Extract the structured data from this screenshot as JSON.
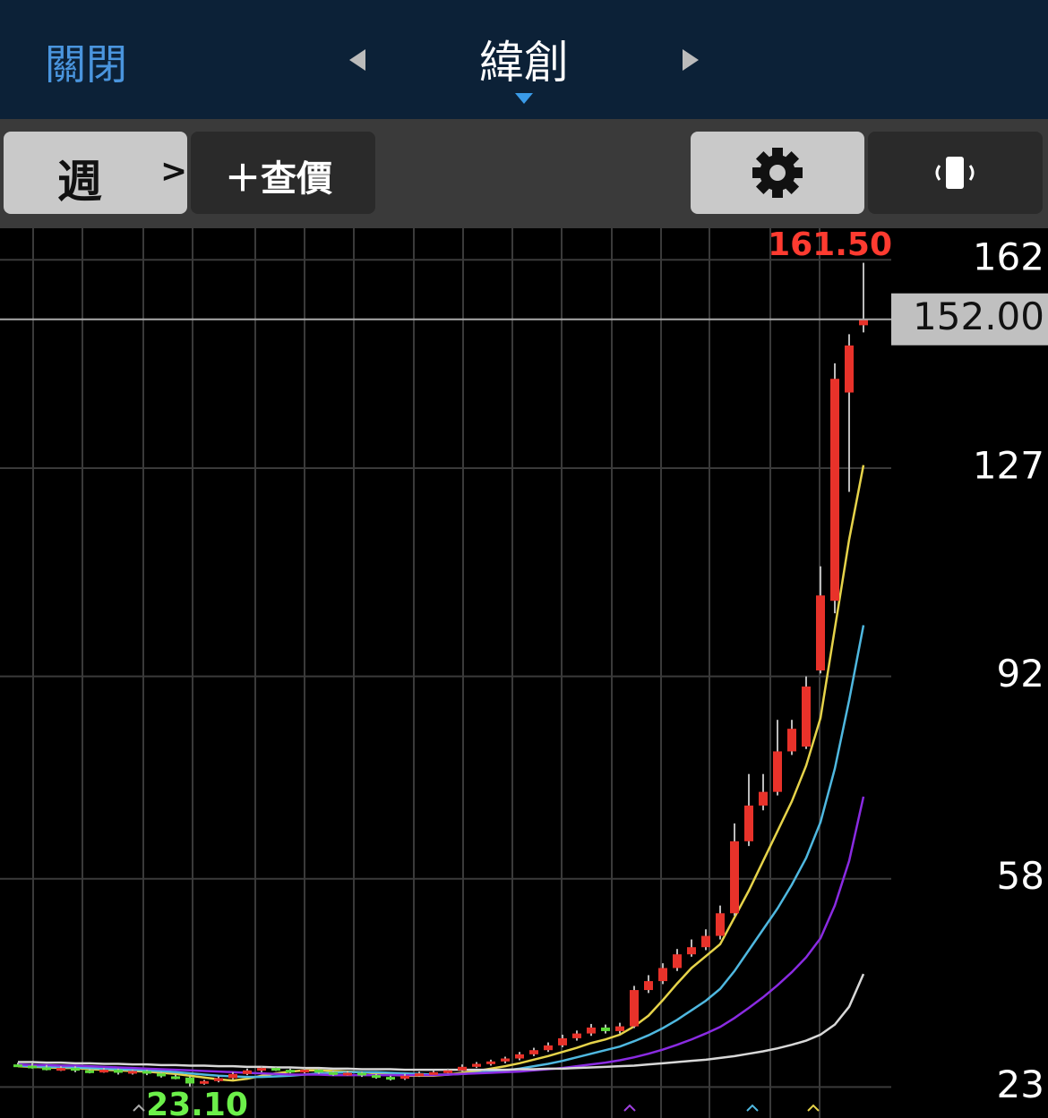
{
  "header": {
    "close": "關閉",
    "title": "緯創"
  },
  "toolbar": {
    "period": "週",
    "period_arrow": ">",
    "quote": "＋查價"
  },
  "chart_data": {
    "type": "candlestick",
    "ylim": [
      17.8,
      167.3
    ],
    "yticks": [
      23,
      58,
      92,
      127,
      162
    ],
    "up_color": "#e8322a",
    "down_color": "#5ddc3a",
    "last_price": {
      "value": 152,
      "label": "152.00"
    },
    "annotations": [
      {
        "value": 161.5,
        "label": "161.50",
        "color": "#ff3b30"
      },
      {
        "value": 23.1,
        "label": "23.10",
        "color": "#6cf04a"
      }
    ],
    "open": [
      26.8,
      26.6,
      26.3,
      26.0,
      26.2,
      25.8,
      25.6,
      25.9,
      25.4,
      25.7,
      25.3,
      24.8,
      24.6,
      23.6,
      24.0,
      24.5,
      25.2,
      25.8,
      26.2,
      25.9,
      25.6,
      25.9,
      25.5,
      25.2,
      25.4,
      25.0,
      24.7,
      24.4,
      24.9,
      25.3,
      25.5,
      25.8,
      26.4,
      26.9,
      27.3,
      27.8,
      28.5,
      29.2,
      30.0,
      31.2,
      32.0,
      33.0,
      32.4,
      33.2,
      39.3,
      40.8,
      43.0,
      45.3,
      46.5,
      48.4,
      52.2,
      64.3,
      70.3,
      72.6,
      79.4,
      80.2,
      93.0,
      104.7,
      139.7,
      151.0
    ],
    "high": [
      27.1,
      27.0,
      26.7,
      26.5,
      26.5,
      26.1,
      26.2,
      26.1,
      25.9,
      25.9,
      25.6,
      25.1,
      24.8,
      24.2,
      24.8,
      25.5,
      26.1,
      26.5,
      26.5,
      26.1,
      26.2,
      26.1,
      25.8,
      25.7,
      25.6,
      25.2,
      24.9,
      25.2,
      25.6,
      25.8,
      26.1,
      26.8,
      27.2,
      27.6,
      28.1,
      28.9,
      29.6,
      30.5,
      31.8,
      32.5,
      33.6,
      33.5,
      33.8,
      40.0,
      41.8,
      43.8,
      46.2,
      47.8,
      49.5,
      53.5,
      67.3,
      75.6,
      75.6,
      84.7,
      84.7,
      92.0,
      110.5,
      144.6,
      149.5,
      161.5
    ],
    "low": [
      26.4,
      26.1,
      25.8,
      25.7,
      25.5,
      25.3,
      25.4,
      25.1,
      25.1,
      25.0,
      24.6,
      24.3,
      23.1,
      23.4,
      23.8,
      24.3,
      25.0,
      25.5,
      25.7,
      25.3,
      25.3,
      25.2,
      24.9,
      24.9,
      24.7,
      24.4,
      24.1,
      24.2,
      24.7,
      25.1,
      25.3,
      25.6,
      26.2,
      26.6,
      27.0,
      27.5,
      28.2,
      28.9,
      29.7,
      30.8,
      31.6,
      32.0,
      32.0,
      32.9,
      38.8,
      40.3,
      42.5,
      44.9,
      46.0,
      47.8,
      51.8,
      63.5,
      69.5,
      72.0,
      78.8,
      79.8,
      92.5,
      102.6,
      123.0,
      149.8
    ],
    "close": [
      26.6,
      26.3,
      26.0,
      26.2,
      25.8,
      25.6,
      25.9,
      25.4,
      25.7,
      25.3,
      24.8,
      24.6,
      23.6,
      24.0,
      24.5,
      25.2,
      25.8,
      26.2,
      25.9,
      25.6,
      25.9,
      25.5,
      25.2,
      25.4,
      25.0,
      24.7,
      24.4,
      24.9,
      25.3,
      25.5,
      25.8,
      26.4,
      26.9,
      27.3,
      27.8,
      28.5,
      29.2,
      30.0,
      31.2,
      32.0,
      33.0,
      32.4,
      33.2,
      39.3,
      40.8,
      43.0,
      45.3,
      46.5,
      48.4,
      52.2,
      64.3,
      70.3,
      72.6,
      79.4,
      83.2,
      90.3,
      105.6,
      142.0,
      147.6,
      152.0
    ],
    "series": [
      {
        "color": "#e6d34a",
        "values": [
          26.5,
          26.4,
          26.3,
          26.2,
          26.2,
          26.0,
          25.9,
          25.8,
          25.7,
          25.6,
          25.4,
          25.2,
          24.9,
          24.6,
          24.3,
          24.1,
          24.4,
          24.9,
          25.3,
          25.6,
          25.8,
          25.8,
          25.7,
          25.6,
          25.5,
          25.3,
          25.1,
          24.9,
          24.9,
          24.9,
          25.1,
          25.4,
          25.7,
          26.1,
          26.5,
          27.0,
          27.6,
          28.2,
          28.9,
          29.6,
          30.4,
          31.0,
          31.8,
          33.2,
          35.0,
          37.6,
          40.4,
          43.0,
          45.0,
          47.0,
          51.5,
          56.0,
          61.0,
          66.0,
          71.0,
          77.0,
          85.0,
          100.0,
          115.0,
          127.5
        ]
      },
      {
        "color": "#4fb8e0",
        "values": [
          26.6,
          26.5,
          26.4,
          26.4,
          26.3,
          26.2,
          26.1,
          26.0,
          25.9,
          25.8,
          25.7,
          25.5,
          25.3,
          25.1,
          24.9,
          24.8,
          24.7,
          24.7,
          24.8,
          24.9,
          25.1,
          25.3,
          25.4,
          25.5,
          25.5,
          25.5,
          25.4,
          25.3,
          25.2,
          25.1,
          25.1,
          25.2,
          25.4,
          25.6,
          25.8,
          26.1,
          26.5,
          26.9,
          27.4,
          28.0,
          28.6,
          29.2,
          29.8,
          30.7,
          31.7,
          32.9,
          34.3,
          35.9,
          37.5,
          39.5,
          42.5,
          46.0,
          49.5,
          53.0,
          57.0,
          61.5,
          67.5,
          76.5,
          88.0,
          100.6
        ]
      },
      {
        "color": "#8a2be2",
        "values": [
          26.8,
          26.7,
          26.7,
          26.6,
          26.6,
          26.5,
          26.4,
          26.3,
          26.2,
          26.1,
          26.0,
          25.9,
          25.8,
          25.7,
          25.6,
          25.5,
          25.4,
          25.3,
          25.2,
          25.1,
          25.1,
          25.1,
          25.0,
          25.0,
          25.0,
          25.0,
          25.0,
          25.0,
          25.0,
          25.0,
          25.1,
          25.2,
          25.3,
          25.4,
          25.5,
          25.6,
          25.8,
          26.0,
          26.2,
          26.5,
          26.8,
          27.1,
          27.5,
          28.0,
          28.6,
          29.3,
          30.1,
          31.0,
          32.0,
          33.1,
          34.6,
          36.3,
          38.1,
          40.1,
          42.3,
          44.8,
          48.0,
          53.5,
          61.0,
          71.8
        ]
      },
      {
        "color": "#d8d8d8",
        "values": [
          27.2,
          27.2,
          27.1,
          27.1,
          27.0,
          27.0,
          26.9,
          26.9,
          26.8,
          26.8,
          26.7,
          26.7,
          26.6,
          26.6,
          26.5,
          26.5,
          26.4,
          26.4,
          26.3,
          26.3,
          26.2,
          26.2,
          26.1,
          26.1,
          26.0,
          26.0,
          26.0,
          25.9,
          25.9,
          25.9,
          25.9,
          25.9,
          25.9,
          25.9,
          25.9,
          26.0,
          26.0,
          26.1,
          26.1,
          26.2,
          26.3,
          26.4,
          26.5,
          26.6,
          26.8,
          27.0,
          27.2,
          27.4,
          27.6,
          27.9,
          28.2,
          28.6,
          29.0,
          29.5,
          30.1,
          30.8,
          31.8,
          33.5,
          36.5,
          42.0
        ]
      }
    ]
  }
}
